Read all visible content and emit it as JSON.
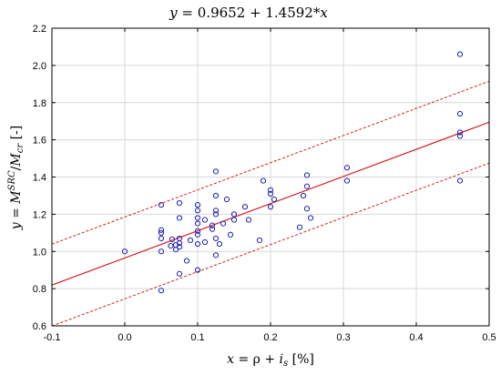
{
  "chart_data": {
    "type": "scatter",
    "title": "y = 0.9652 + 1.4592*x",
    "title_parts": {
      "y": "y",
      "eq": " = 0.9652 + 1.4592*",
      "x": "x"
    },
    "xlabel": "x = ρ + i_s [%]",
    "xlabel_parts": {
      "x": "x",
      "eq": " = ρ + ",
      "i": "i",
      "sub": "s",
      "unit": " [%]"
    },
    "ylabel": "y = M^SRC/M_cr [-]",
    "ylabel_parts": {
      "y": "y",
      "eq": " = ",
      "M1": "M",
      "sup": "SRC",
      "slash": "/",
      "M2": "M",
      "sub": "cr",
      "unit": " [-]"
    },
    "xlim": [
      -0.1,
      0.5
    ],
    "ylim": [
      0.6,
      2.2
    ],
    "xticks": [
      -0.1,
      0.0,
      0.1,
      0.2,
      0.3,
      0.4,
      0.5
    ],
    "xtick_labels": [
      "-0.1",
      "0.0",
      "0.1",
      "0.2",
      "0.3",
      "0.4",
      "0.5"
    ],
    "yticks": [
      0.6,
      0.8,
      1.0,
      1.2,
      1.4,
      1.6,
      1.8,
      2.0,
      2.2
    ],
    "ytick_labels": [
      "0.6",
      "0.8",
      "1.0",
      "1.2",
      "1.4",
      "1.6",
      "1.8",
      "2.0",
      "2.2"
    ],
    "grid": true,
    "regression": {
      "intercept": 0.9652,
      "slope": 1.4592
    },
    "confidence_band": {
      "offset": 0.22
    },
    "colors": {
      "points": "#1f1fb4",
      "fit": "#d22020",
      "grid": "#d9d9d9",
      "axis": "#000000"
    },
    "points": [
      {
        "x": 0.0,
        "y": 1.0
      },
      {
        "x": 0.05,
        "y": 1.25
      },
      {
        "x": 0.05,
        "y": 1.115
      },
      {
        "x": 0.05,
        "y": 1.1
      },
      {
        "x": 0.05,
        "y": 1.07
      },
      {
        "x": 0.05,
        "y": 1.0
      },
      {
        "x": 0.05,
        "y": 0.79
      },
      {
        "x": 0.063,
        "y": 1.03
      },
      {
        "x": 0.065,
        "y": 1.065
      },
      {
        "x": 0.07,
        "y": 1.035
      },
      {
        "x": 0.07,
        "y": 1.01
      },
      {
        "x": 0.075,
        "y": 1.26
      },
      {
        "x": 0.075,
        "y": 1.18
      },
      {
        "x": 0.075,
        "y": 1.07
      },
      {
        "x": 0.075,
        "y": 1.045
      },
      {
        "x": 0.075,
        "y": 1.025
      },
      {
        "x": 0.075,
        "y": 0.88
      },
      {
        "x": 0.085,
        "y": 0.95
      },
      {
        "x": 0.09,
        "y": 1.06
      },
      {
        "x": 0.1,
        "y": 1.25
      },
      {
        "x": 0.1,
        "y": 1.22
      },
      {
        "x": 0.1,
        "y": 1.18
      },
      {
        "x": 0.1,
        "y": 1.15
      },
      {
        "x": 0.1,
        "y": 1.11
      },
      {
        "x": 0.1,
        "y": 1.09
      },
      {
        "x": 0.1,
        "y": 1.04
      },
      {
        "x": 0.1,
        "y": 0.9
      },
      {
        "x": 0.11,
        "y": 1.17
      },
      {
        "x": 0.11,
        "y": 1.05
      },
      {
        "x": 0.12,
        "y": 1.14
      },
      {
        "x": 0.12,
        "y": 1.12
      },
      {
        "x": 0.125,
        "y": 1.43
      },
      {
        "x": 0.125,
        "y": 1.3
      },
      {
        "x": 0.125,
        "y": 1.22
      },
      {
        "x": 0.125,
        "y": 1.2
      },
      {
        "x": 0.125,
        "y": 1.07
      },
      {
        "x": 0.125,
        "y": 0.98
      },
      {
        "x": 0.13,
        "y": 1.04
      },
      {
        "x": 0.135,
        "y": 1.15
      },
      {
        "x": 0.14,
        "y": 1.28
      },
      {
        "x": 0.145,
        "y": 1.09
      },
      {
        "x": 0.15,
        "y": 1.2
      },
      {
        "x": 0.15,
        "y": 1.17
      },
      {
        "x": 0.165,
        "y": 1.24
      },
      {
        "x": 0.17,
        "y": 1.17
      },
      {
        "x": 0.185,
        "y": 1.06
      },
      {
        "x": 0.19,
        "y": 1.38
      },
      {
        "x": 0.2,
        "y": 1.33
      },
      {
        "x": 0.2,
        "y": 1.31
      },
      {
        "x": 0.2,
        "y": 1.24
      },
      {
        "x": 0.205,
        "y": 1.28
      },
      {
        "x": 0.24,
        "y": 1.13
      },
      {
        "x": 0.245,
        "y": 1.3
      },
      {
        "x": 0.25,
        "y": 1.41
      },
      {
        "x": 0.25,
        "y": 1.35
      },
      {
        "x": 0.25,
        "y": 1.23
      },
      {
        "x": 0.255,
        "y": 1.18
      },
      {
        "x": 0.305,
        "y": 1.45
      },
      {
        "x": 0.305,
        "y": 1.38
      },
      {
        "x": 0.46,
        "y": 2.06
      },
      {
        "x": 0.46,
        "y": 1.74
      },
      {
        "x": 0.46,
        "y": 1.64
      },
      {
        "x": 0.46,
        "y": 1.62
      },
      {
        "x": 0.46,
        "y": 1.38
      }
    ]
  }
}
